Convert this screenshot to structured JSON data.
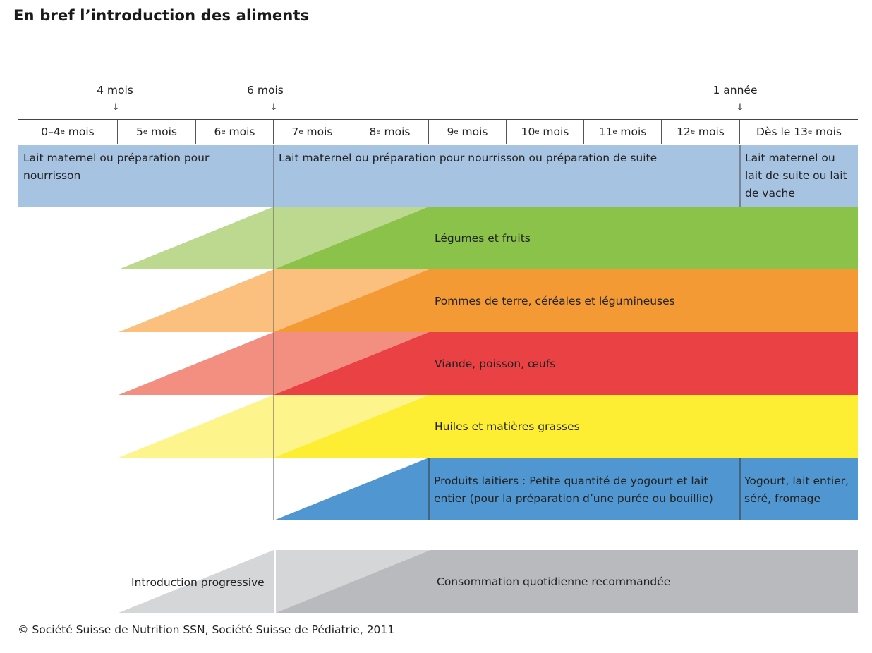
{
  "title": "En bref l’introduction des aliments",
  "markers": [
    {
      "label": "4 mois",
      "arrow": "↓"
    },
    {
      "label": "6 mois",
      "arrow": "↓"
    },
    {
      "label": "1 année",
      "arrow": "↓"
    }
  ],
  "months": [
    {
      "pre": "0–4",
      "sup": "e",
      "post": " mois"
    },
    {
      "pre": "5",
      "sup": "e",
      "post": " mois"
    },
    {
      "pre": "6",
      "sup": "e",
      "post": " mois"
    },
    {
      "pre": "7",
      "sup": "e",
      "post": " mois"
    },
    {
      "pre": "8",
      "sup": "e",
      "post": " mois"
    },
    {
      "pre": "9",
      "sup": "e",
      "post": " mois"
    },
    {
      "pre": "10",
      "sup": "e",
      "post": " mois"
    },
    {
      "pre": "11",
      "sup": "e",
      "post": " mois"
    },
    {
      "pre": "12",
      "sup": "e",
      "post": " mois"
    },
    {
      "pre": "Dès le 13",
      "sup": "e",
      "post": " mois"
    }
  ],
  "milk": {
    "early": "Lait maternel ou préparation pour nourrisson",
    "middle": "Lait maternel ou préparation pour nourrisson ou préparation de suite",
    "late": "Lait maternel ou lait de suite ou lait de vache"
  },
  "food_groups": [
    {
      "label": "Légumes et fruits",
      "light": "#bcd98f",
      "strong": "#8bc34a"
    },
    {
      "label": "Pommes de terre, céréales et légumineuses",
      "light": "#fbbf7e",
      "strong": "#f39a34"
    },
    {
      "label": "Viande, poisson, œufs",
      "light": "#f28f80",
      "strong": "#ea4144"
    },
    {
      "label": "Huiles et matières grasses",
      "light": "#fdf48c",
      "strong": "#fdee33"
    }
  ],
  "dairy": {
    "label": "Produits laitiers : Petite quantité de yogourt et lait entier (pour la préparation d’une purée ou bouillie)",
    "late": "Yogourt, lait entier, séré, fromage",
    "color": "#5097d1"
  },
  "legend": {
    "progressive": "Introduction progressive",
    "daily": "Consommation quotidienne recommandée",
    "light": "#d5d6d8",
    "strong": "#b9babe"
  },
  "milk_color": "#a7c3e2",
  "footer": "© Société Suisse de Nutrition SSN, Société Suisse de Pédiatrie, 2011"
}
